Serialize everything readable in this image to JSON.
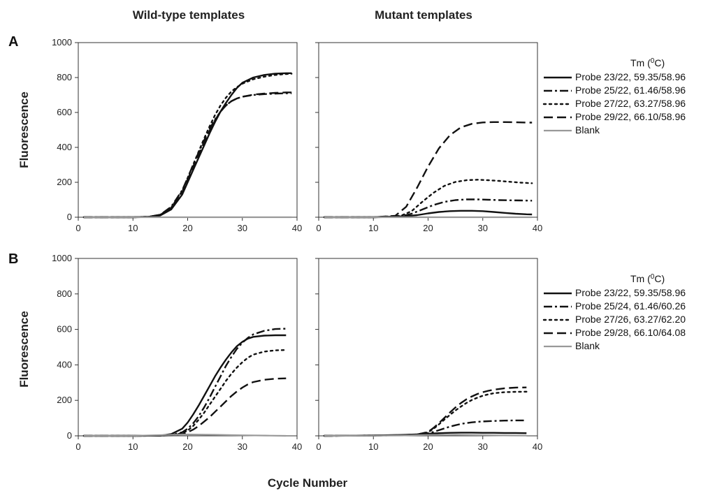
{
  "figure": {
    "col_titles": [
      "Wild-type templates",
      "Mutant templates"
    ],
    "xlabel": "Cycle Number",
    "ylabel": "Fluorescence",
    "colors": {
      "probe": "#111111",
      "blank": "#999999"
    },
    "legend_title_main": "Tm",
    "legend_title_unit": "(",
    "legend_title_sup": "0",
    "legend_title_end": "C)"
  },
  "chart_data": [
    {
      "type": "line",
      "panel": "A",
      "column": "Wild-type templates",
      "xlim": [
        0,
        40
      ],
      "ylim": [
        0,
        1000
      ],
      "xticks": [
        0,
        10,
        20,
        30,
        40
      ],
      "yticks": [
        0,
        200,
        400,
        600,
        800,
        1000
      ],
      "xlabel": "",
      "ylabel": "Fluorescence",
      "series": [
        {
          "name": "Probe 23/22, 59.35/58.96",
          "dash": "solid",
          "x": [
            1,
            5,
            10,
            13,
            15,
            17,
            19,
            20,
            21,
            22,
            23,
            24,
            25,
            26,
            27,
            28,
            29,
            30,
            32,
            34,
            36,
            38,
            39
          ],
          "y": [
            0,
            0,
            0,
            2,
            10,
            45,
            130,
            200,
            270,
            340,
            410,
            480,
            545,
            605,
            655,
            700,
            740,
            770,
            800,
            815,
            822,
            825,
            825
          ]
        },
        {
          "name": "Probe 25/22, 61.46/58.96",
          "dash": "dashdot",
          "x": [
            1,
            5,
            10,
            13,
            15,
            17,
            19,
            20,
            21,
            22,
            23,
            24,
            25,
            26,
            27,
            28,
            29,
            30,
            32,
            34,
            36,
            38,
            39
          ],
          "y": [
            0,
            0,
            0,
            3,
            15,
            60,
            155,
            225,
            300,
            370,
            440,
            505,
            560,
            605,
            640,
            665,
            680,
            690,
            700,
            705,
            708,
            710,
            710
          ]
        },
        {
          "name": "Probe 27/22, 63.27/58.96",
          "dash": "dotted",
          "x": [
            1,
            5,
            10,
            13,
            15,
            17,
            19,
            20,
            21,
            22,
            23,
            24,
            25,
            26,
            27,
            28,
            29,
            30,
            32,
            34,
            36,
            38,
            39
          ],
          "y": [
            0,
            0,
            0,
            3,
            14,
            55,
            150,
            225,
            300,
            375,
            450,
            520,
            585,
            640,
            685,
            720,
            745,
            765,
            790,
            805,
            815,
            820,
            822
          ]
        },
        {
          "name": "Probe 29/22, 66.10/58.96",
          "dash": "dashed",
          "x": [
            1,
            5,
            10,
            13,
            15,
            17,
            19,
            20,
            21,
            22,
            23,
            24,
            25,
            26,
            27,
            28,
            29,
            30,
            32,
            34,
            36,
            38,
            39
          ],
          "y": [
            0,
            0,
            0,
            3,
            15,
            55,
            145,
            215,
            290,
            360,
            430,
            495,
            555,
            605,
            640,
            665,
            680,
            690,
            702,
            708,
            712,
            715,
            715
          ]
        },
        {
          "name": "Blank",
          "dash": "solid",
          "gray": true,
          "x": [
            1,
            20,
            39
          ],
          "y": [
            0,
            0,
            0
          ]
        }
      ]
    },
    {
      "type": "line",
      "panel": "A",
      "column": "Mutant templates",
      "xlim": [
        0,
        40
      ],
      "ylim": [
        0,
        1000
      ],
      "xticks": [
        0,
        10,
        20,
        30,
        40
      ],
      "yticks": [
        0,
        200,
        400,
        600,
        800,
        1000
      ],
      "series": [
        {
          "name": "Probe 23/22, 59.35/58.96",
          "dash": "solid",
          "x": [
            1,
            10,
            15,
            18,
            20,
            22,
            24,
            26,
            28,
            30,
            32,
            34,
            36,
            38,
            39
          ],
          "y": [
            0,
            0,
            3,
            12,
            22,
            30,
            35,
            37,
            37,
            35,
            30,
            25,
            20,
            17,
            16
          ]
        },
        {
          "name": "Probe 25/22, 61.46/58.96",
          "dash": "dashdot",
          "x": [
            1,
            10,
            15,
            17,
            19,
            21,
            23,
            25,
            27,
            29,
            31,
            33,
            35,
            37,
            39
          ],
          "y": [
            0,
            0,
            5,
            20,
            45,
            70,
            88,
            98,
            102,
            102,
            100,
            98,
            97,
            96,
            95
          ]
        },
        {
          "name": "Probe 27/22, 63.27/58.96",
          "dash": "dotted",
          "x": [
            1,
            10,
            15,
            17,
            19,
            21,
            23,
            25,
            27,
            29,
            31,
            33,
            35,
            37,
            39
          ],
          "y": [
            0,
            0,
            8,
            35,
            90,
            140,
            180,
            202,
            212,
            215,
            212,
            208,
            203,
            198,
            195
          ]
        },
        {
          "name": "Probe 29/22, 66.10/58.96",
          "dash": "dashed",
          "x": [
            1,
            10,
            14,
            16,
            18,
            20,
            22,
            24,
            26,
            28,
            30,
            32,
            34,
            36,
            38,
            39
          ],
          "y": [
            0,
            0,
            8,
            60,
            170,
            290,
            395,
            470,
            515,
            535,
            543,
            545,
            545,
            544,
            542,
            542
          ]
        },
        {
          "name": "Blank",
          "dash": "solid",
          "gray": true,
          "x": [
            1,
            20,
            39
          ],
          "y": [
            0,
            0,
            0
          ]
        }
      ]
    },
    {
      "type": "line",
      "panel": "B",
      "column": "Wild-type templates",
      "xlim": [
        0,
        40
      ],
      "ylim": [
        0,
        1000
      ],
      "xticks": [
        0,
        10,
        20,
        30,
        40
      ],
      "yticks": [
        0,
        200,
        400,
        600,
        800,
        1000
      ],
      "xlabel": "",
      "ylabel": "Fluorescence",
      "series": [
        {
          "name": "Probe 23/22, 59.35/58.96",
          "dash": "solid",
          "x": [
            1,
            10,
            15,
            17,
            19,
            20,
            21,
            22,
            23,
            24,
            25,
            26,
            27,
            28,
            29,
            30,
            31,
            32,
            34,
            36,
            38
          ],
          "y": [
            0,
            0,
            1,
            10,
            40,
            75,
            120,
            170,
            225,
            280,
            335,
            385,
            430,
            470,
            505,
            530,
            548,
            558,
            565,
            567,
            567
          ]
        },
        {
          "name": "Probe 25/24, 61.46/60.26",
          "dash": "dashdot",
          "x": [
            1,
            10,
            15,
            17,
            19,
            20,
            21,
            22,
            23,
            24,
            25,
            26,
            27,
            28,
            29,
            30,
            31,
            32,
            34,
            36,
            38
          ],
          "y": [
            0,
            0,
            1,
            5,
            20,
            40,
            70,
            110,
            160,
            215,
            275,
            335,
            395,
            445,
            490,
            525,
            552,
            572,
            592,
            602,
            604
          ]
        },
        {
          "name": "Probe 27/26, 63.27/62.20",
          "dash": "dotted",
          "x": [
            1,
            10,
            15,
            17,
            19,
            20,
            21,
            22,
            23,
            24,
            25,
            26,
            27,
            28,
            29,
            30,
            31,
            32,
            34,
            36,
            38
          ],
          "y": [
            0,
            0,
            1,
            4,
            15,
            30,
            55,
            90,
            130,
            175,
            220,
            265,
            310,
            350,
            385,
            415,
            440,
            458,
            475,
            482,
            484
          ]
        },
        {
          "name": "Probe 29/28, 66.10/64.08",
          "dash": "dashed",
          "x": [
            1,
            10,
            15,
            17,
            19,
            20,
            21,
            22,
            23,
            24,
            25,
            26,
            27,
            28,
            29,
            30,
            31,
            32,
            34,
            36,
            38
          ],
          "y": [
            0,
            0,
            1,
            3,
            10,
            20,
            35,
            55,
            80,
            105,
            135,
            165,
            195,
            225,
            250,
            272,
            290,
            303,
            316,
            322,
            324
          ]
        },
        {
          "name": "Blank",
          "dash": "solid",
          "gray": true,
          "x": [
            1,
            10,
            16,
            20,
            25,
            30,
            35,
            38
          ],
          "y": [
            0,
            0,
            5,
            8,
            6,
            3,
            1,
            0
          ]
        }
      ]
    },
    {
      "type": "line",
      "panel": "B",
      "column": "Mutant templates",
      "xlim": [
        0,
        40
      ],
      "ylim": [
        0,
        1000
      ],
      "xticks": [
        0,
        10,
        20,
        30,
        40
      ],
      "yticks": [
        0,
        200,
        400,
        600,
        800,
        1000
      ],
      "series": [
        {
          "name": "Probe 23/22, 59.35/58.96",
          "dash": "solid",
          "x": [
            1,
            10,
            15,
            18,
            20,
            22,
            24,
            26,
            28,
            30,
            32,
            34,
            36,
            38
          ],
          "y": [
            0,
            2,
            5,
            8,
            12,
            15,
            17,
            18,
            18,
            17,
            17,
            16,
            16,
            15
          ]
        },
        {
          "name": "Probe 25/24, 61.46/60.26",
          "dash": "dashdot",
          "x": [
            1,
            10,
            15,
            18,
            20,
            21,
            22,
            23,
            24,
            25,
            26,
            27,
            28,
            29,
            30,
            32,
            34,
            36,
            38
          ],
          "y": [
            0,
            2,
            4,
            8,
            15,
            22,
            32,
            42,
            52,
            60,
            67,
            72,
            76,
            79,
            81,
            84,
            86,
            87,
            87
          ]
        },
        {
          "name": "Probe 27/26, 63.27/62.20",
          "dash": "dotted",
          "x": [
            1,
            10,
            15,
            18,
            20,
            21,
            22,
            23,
            24,
            25,
            26,
            27,
            28,
            29,
            30,
            31,
            32,
            34,
            36,
            38
          ],
          "y": [
            0,
            2,
            3,
            8,
            20,
            40,
            65,
            92,
            118,
            143,
            165,
            185,
            202,
            215,
            226,
            234,
            240,
            246,
            248,
            249
          ]
        },
        {
          "name": "Probe 29/28, 66.10/64.08",
          "dash": "dashed",
          "x": [
            1,
            10,
            15,
            18,
            20,
            21,
            22,
            23,
            24,
            25,
            26,
            27,
            28,
            29,
            30,
            31,
            32,
            34,
            36,
            38
          ],
          "y": [
            0,
            2,
            3,
            8,
            22,
            45,
            72,
            102,
            132,
            160,
            185,
            206,
            222,
            236,
            246,
            254,
            260,
            268,
            272,
            273
          ]
        },
        {
          "name": "Blank",
          "dash": "solid",
          "gray": true,
          "x": [
            1,
            15,
            20,
            25,
            30,
            35,
            38
          ],
          "y": [
            0,
            2,
            5,
            6,
            4,
            2,
            1
          ]
        }
      ]
    }
  ]
}
